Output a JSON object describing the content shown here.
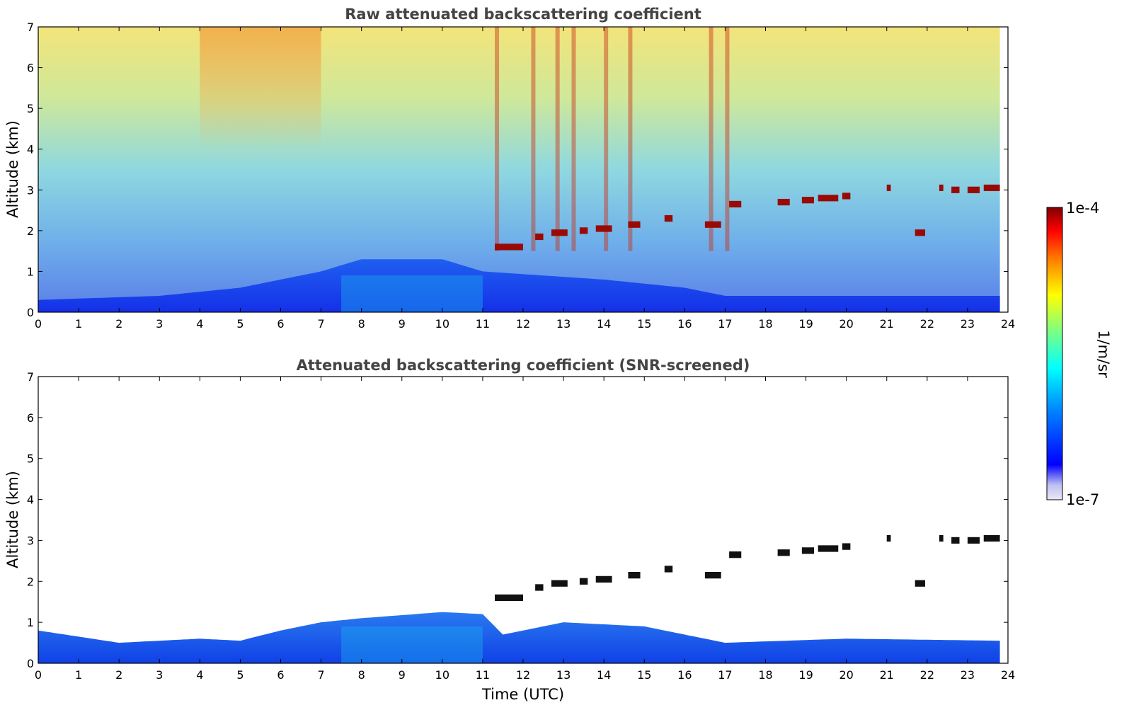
{
  "chart_data": [
    {
      "type": "heatmap",
      "title": "Raw attenuated backscattering coefficient",
      "xlabel": "",
      "ylabel": "Altitude (km)",
      "xlim": [
        0,
        24
      ],
      "ylim": [
        0,
        7
      ],
      "xticks": [
        0,
        1,
        2,
        3,
        4,
        5,
        6,
        7,
        8,
        9,
        10,
        11,
        12,
        13,
        14,
        15,
        16,
        17,
        18,
        19,
        20,
        21,
        22,
        23,
        24
      ],
      "yticks": [
        0,
        1,
        2,
        3,
        4,
        5,
        6,
        7
      ],
      "data_end_time": 23.8,
      "screened": false,
      "boundary_layer_top_km": [
        {
          "t": 0,
          "h": 0.3
        },
        {
          "t": 3,
          "h": 0.4
        },
        {
          "t": 5,
          "h": 0.6
        },
        {
          "t": 7,
          "h": 1.0
        },
        {
          "t": 8,
          "h": 1.3
        },
        {
          "t": 10,
          "h": 1.3
        },
        {
          "t": 11,
          "h": 1.0
        },
        {
          "t": 14,
          "h": 0.8
        },
        {
          "t": 16,
          "h": 0.6
        },
        {
          "t": 17,
          "h": 0.4
        },
        {
          "t": 23.8,
          "h": 0.4
        }
      ],
      "cloud_layers": [
        {
          "t0": 11.3,
          "t1": 12.0,
          "h": 1.6
        },
        {
          "t0": 12.3,
          "t1": 12.5,
          "h": 1.85
        },
        {
          "t0": 12.7,
          "t1": 13.1,
          "h": 1.95
        },
        {
          "t0": 13.4,
          "t1": 13.6,
          "h": 2.0
        },
        {
          "t0": 13.8,
          "t1": 14.2,
          "h": 2.05
        },
        {
          "t0": 14.6,
          "t1": 14.9,
          "h": 2.15
        },
        {
          "t0": 15.5,
          "t1": 15.7,
          "h": 2.3
        },
        {
          "t0": 16.5,
          "t1": 16.9,
          "h": 2.15
        },
        {
          "t0": 17.1,
          "t1": 17.4,
          "h": 2.65
        },
        {
          "t0": 18.3,
          "t1": 18.6,
          "h": 2.7
        },
        {
          "t0": 18.9,
          "t1": 19.2,
          "h": 2.75
        },
        {
          "t0": 19.3,
          "t1": 19.8,
          "h": 2.8
        },
        {
          "t0": 19.9,
          "t1": 20.1,
          "h": 2.85
        },
        {
          "t0": 21.0,
          "t1": 21.1,
          "h": 3.05
        },
        {
          "t0": 21.7,
          "t1": 21.95,
          "h": 1.95
        },
        {
          "t0": 22.3,
          "t1": 22.4,
          "h": 3.05
        },
        {
          "t0": 22.6,
          "t1": 22.8,
          "h": 3.0
        },
        {
          "t0": 23.0,
          "t1": 23.3,
          "h": 3.0
        },
        {
          "t0": 23.4,
          "t1": 23.8,
          "h": 3.05
        }
      ],
      "noise_streaks_t": [
        11.3,
        12.2,
        12.8,
        13.2,
        14.0,
        14.6,
        16.6,
        17.0
      ]
    },
    {
      "type": "heatmap",
      "title": "Attenuated backscattering coefficient (SNR-screened)",
      "xlabel": "Time (UTC)",
      "ylabel": "Altitude (km)",
      "xlim": [
        0,
        24
      ],
      "ylim": [
        0,
        7
      ],
      "xticks": [
        0,
        1,
        2,
        3,
        4,
        5,
        6,
        7,
        8,
        9,
        10,
        11,
        12,
        13,
        14,
        15,
        16,
        17,
        18,
        19,
        20,
        21,
        22,
        23,
        24
      ],
      "yticks": [
        0,
        1,
        2,
        3,
        4,
        5,
        6,
        7
      ],
      "data_end_time": 23.8,
      "screened": true,
      "boundary_layer_top_km": [
        {
          "t": 0,
          "h": 0.8
        },
        {
          "t": 2,
          "h": 0.5
        },
        {
          "t": 4,
          "h": 0.6
        },
        {
          "t": 5,
          "h": 0.55
        },
        {
          "t": 6,
          "h": 0.8
        },
        {
          "t": 7,
          "h": 1.0
        },
        {
          "t": 8,
          "h": 1.1
        },
        {
          "t": 10,
          "h": 1.25
        },
        {
          "t": 11,
          "h": 1.2
        },
        {
          "t": 11.5,
          "h": 0.7
        },
        {
          "t": 13,
          "h": 1.0
        },
        {
          "t": 15,
          "h": 0.9
        },
        {
          "t": 16.5,
          "h": 0.6
        },
        {
          "t": 17,
          "h": 0.5
        },
        {
          "t": 20,
          "h": 0.6
        },
        {
          "t": 23.8,
          "h": 0.55
        }
      ],
      "cloud_layers": [
        {
          "t0": 11.3,
          "t1": 12.0,
          "h": 1.6
        },
        {
          "t0": 12.3,
          "t1": 12.5,
          "h": 1.85
        },
        {
          "t0": 12.7,
          "t1": 13.1,
          "h": 1.95
        },
        {
          "t0": 13.4,
          "t1": 13.6,
          "h": 2.0
        },
        {
          "t0": 13.8,
          "t1": 14.2,
          "h": 2.05
        },
        {
          "t0": 14.6,
          "t1": 14.9,
          "h": 2.15
        },
        {
          "t0": 15.5,
          "t1": 15.7,
          "h": 2.3
        },
        {
          "t0": 16.5,
          "t1": 16.9,
          "h": 2.15
        },
        {
          "t0": 17.1,
          "t1": 17.4,
          "h": 2.65
        },
        {
          "t0": 18.3,
          "t1": 18.6,
          "h": 2.7
        },
        {
          "t0": 18.9,
          "t1": 19.2,
          "h": 2.75
        },
        {
          "t0": 19.3,
          "t1": 19.8,
          "h": 2.8
        },
        {
          "t0": 19.9,
          "t1": 20.1,
          "h": 2.85
        },
        {
          "t0": 21.0,
          "t1": 21.1,
          "h": 3.05
        },
        {
          "t0": 21.7,
          "t1": 21.95,
          "h": 1.95
        },
        {
          "t0": 22.3,
          "t1": 22.4,
          "h": 3.05
        },
        {
          "t0": 22.6,
          "t1": 22.8,
          "h": 3.0
        },
        {
          "t0": 23.0,
          "t1": 23.3,
          "h": 3.0
        },
        {
          "t0": 23.4,
          "t1": 23.8,
          "h": 3.05
        }
      ]
    }
  ],
  "colorbar": {
    "label": "1/m/sr",
    "max_label": "1e-4",
    "min_label": "1e-7",
    "scale": "log",
    "colormap": "jet",
    "colors": [
      "#e8e8f8",
      "#c0c0f0",
      "#0000ff",
      "#0080ff",
      "#00ffff",
      "#80ff80",
      "#ffff00",
      "#ff8000",
      "#ff0000",
      "#800000"
    ]
  }
}
